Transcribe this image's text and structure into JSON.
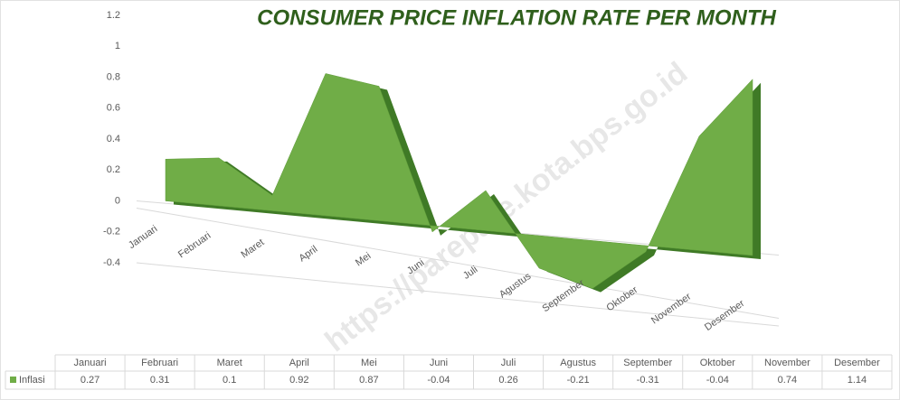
{
  "chart_data": {
    "type": "area3d",
    "title": "CONSUMER PRICE INFLATION RATE PER MONTH",
    "watermark": "https://parepare.kota.bps.go.id",
    "categories": [
      "Januari",
      "Februari",
      "Maret",
      "April",
      "Mei",
      "Juni",
      "Juli",
      "Agustus",
      "September",
      "Oktober",
      "November",
      "Desember"
    ],
    "series": [
      {
        "name": "Inflasi",
        "color": "#70ad47",
        "values": [
          0.27,
          0.31,
          0.1,
          0.92,
          0.87,
          -0.04,
          0.26,
          -0.21,
          -0.31,
          -0.04,
          0.74,
          1.14
        ]
      }
    ],
    "ylim": [
      -0.4,
      1.2
    ],
    "yticks": [
      -0.4,
      -0.2,
      0,
      0.2,
      0.4,
      0.6,
      0.8,
      1,
      1.2
    ],
    "grid": false,
    "data_table": true
  }
}
